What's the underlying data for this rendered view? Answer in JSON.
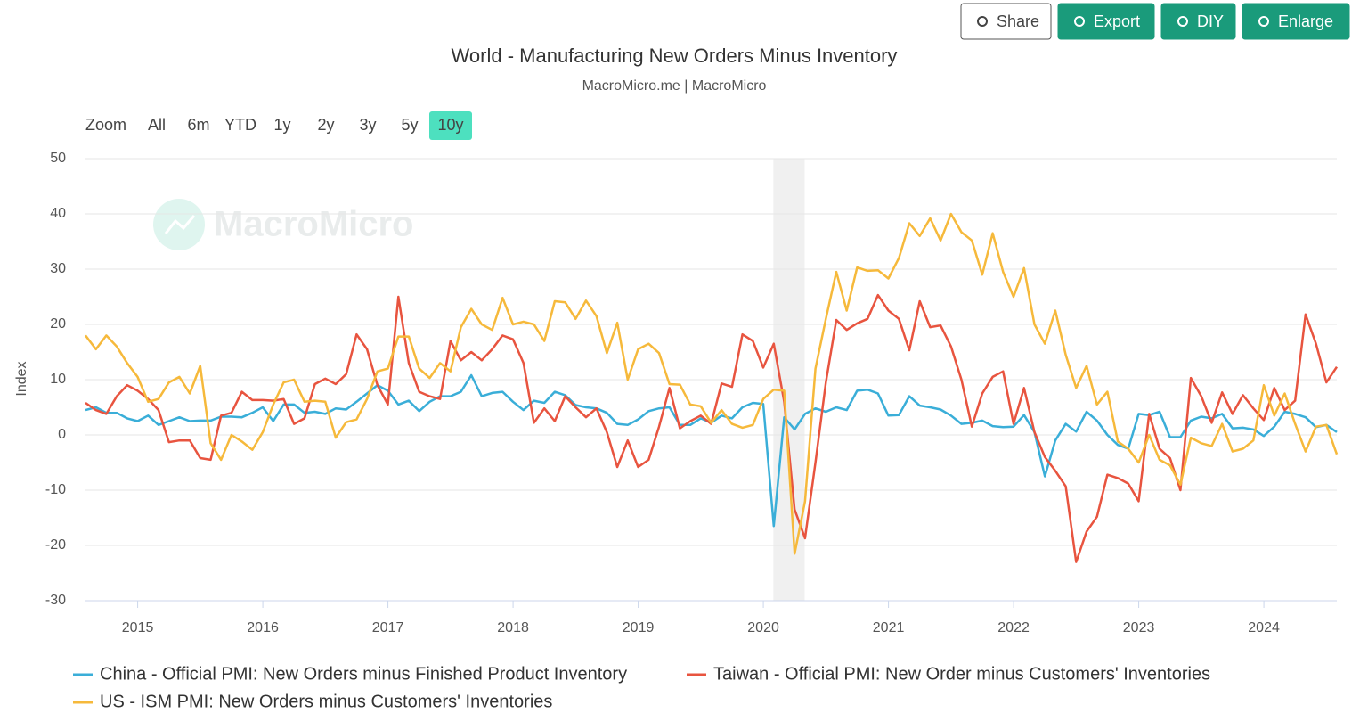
{
  "toolbar": {
    "buttons": [
      "Share",
      "Export",
      "DIY",
      "Enlarge"
    ]
  },
  "range_selector": {
    "label": "Zoom",
    "options": [
      "All",
      "6m",
      "YTD",
      "1y",
      "2y",
      "3y",
      "5y",
      "10y"
    ],
    "active_index": 7
  },
  "chart_data": {
    "type": "line",
    "title": "World - Manufacturing New Orders Minus Inventory",
    "subtitle": "MacroMicro.me | MacroMicro",
    "y_label": "Index",
    "watermark": "MacroMicro",
    "xlim": [
      2014.583,
      2024.583
    ],
    "xticks": [
      2015,
      2016,
      2017,
      2018,
      2019,
      2020,
      2021,
      2022,
      2023,
      2024
    ],
    "ylim": [
      -30,
      50
    ],
    "yticks": [
      -30,
      -20,
      -10,
      0,
      10,
      20,
      30,
      40,
      50
    ],
    "grid": true,
    "band": [
      2020.08,
      2020.33
    ],
    "series": [
      {
        "name": "China - Official PMI: New Orders minus Finished Product Inventory",
        "color": "#3aaed8",
        "values": [
          4.5,
          5,
          4,
          4,
          3,
          2.5,
          3.5,
          1.8,
          2.5,
          3.2,
          2.5,
          2.6,
          2.6,
          3.3,
          3.3,
          3.2,
          4,
          5,
          2.5,
          5.5,
          5.5,
          4,
          4.2,
          3.8,
          4.8,
          4.6,
          6,
          7.5,
          9,
          8,
          5.5,
          6.2,
          4.3,
          6,
          7,
          7,
          7.8,
          10.8,
          7,
          7.6,
          7.8,
          6,
          4.5,
          6.2,
          5.8,
          7.8,
          7.2,
          5.4,
          5,
          4.8,
          4,
          2,
          1.8,
          2.8,
          4.3,
          4.8,
          5,
          1.8,
          1.8,
          3,
          2.2,
          3.5,
          3,
          5,
          5.8,
          5.6,
          -16.5,
          3.2,
          1,
          3.8,
          4.8,
          4.2,
          5,
          4.5,
          8,
          8.2,
          7.5,
          3.5,
          3.6,
          7,
          5.3,
          5,
          4.6,
          3.5,
          2,
          2.2,
          2.6,
          1.6,
          1.4,
          1.5,
          3.6,
          0.5,
          -7.5,
          -1,
          2,
          0.6,
          4.2,
          2.6,
          0,
          -1.8,
          -2.5,
          3.8,
          3.6,
          4.2,
          -0.4,
          -0.4,
          2.6,
          3.3,
          3,
          3.8,
          1.2,
          1.3,
          1,
          -0.2,
          1.5,
          4.2,
          3.8,
          3.2,
          1.4,
          1.8,
          0.5
        ]
      },
      {
        "name": "Taiwan - Official PMI: New Order minus Customers' Inventories",
        "color": "#e8543f",
        "values": [
          5.8,
          4.5,
          3.8,
          7,
          9,
          8,
          6.5,
          4.5,
          -1.3,
          -1,
          -1,
          -4.2,
          -4.5,
          3.5,
          4,
          7.8,
          6.3,
          6.3,
          6.2,
          6.5,
          2,
          3,
          9.2,
          10.2,
          9.2,
          11,
          18.2,
          15.5,
          9,
          5.5,
          25,
          13,
          7.8,
          7,
          6.5,
          17,
          13.5,
          15,
          13.5,
          15.5,
          18,
          17.3,
          13,
          2.2,
          4.8,
          2.5,
          7,
          5,
          3.2,
          4.8,
          0.5,
          -5.8,
          -1,
          -5.8,
          -4.5,
          1.5,
          8.5,
          1.2,
          2.5,
          3.5,
          2,
          9.3,
          8.7,
          18.2,
          17,
          12.2,
          16.5,
          6,
          -13.5,
          -18.7,
          -5,
          9.5,
          20.8,
          19,
          20.2,
          21,
          25.3,
          22.5,
          21,
          15.3,
          24.2,
          19.5,
          19.8,
          16,
          10,
          1.5,
          7.5,
          10.5,
          11.5,
          2,
          8.5,
          0.5,
          -4,
          -6.5,
          -9.3,
          -23,
          -17.5,
          -14.8,
          -7.2,
          -7.8,
          -8.8,
          -12,
          3.8,
          -2.5,
          -4.2,
          -10,
          10.3,
          7,
          2.2,
          7.7,
          3.8,
          7.2,
          4.8,
          2.7,
          8.5,
          4.5,
          6.2,
          21.8,
          16.5,
          9.5,
          12.3
        ]
      },
      {
        "name": "US - ISM PMI: New Orders minus Customers' Inventories",
        "color": "#f6b93b",
        "values": [
          18,
          15.5,
          18,
          16,
          13,
          10.5,
          6,
          6.5,
          9.5,
          10.5,
          7.5,
          12.5,
          -1.5,
          -4.5,
          0,
          -1.2,
          -2.7,
          0.5,
          5.5,
          9.5,
          10,
          6,
          6.2,
          6,
          -0.5,
          2.3,
          2.8,
          6.5,
          11.5,
          12,
          17.8,
          17.8,
          12,
          10.3,
          13,
          11.5,
          19.5,
          22.8,
          20,
          19,
          24.8,
          20,
          20.5,
          20,
          17,
          24.2,
          24,
          21,
          24.3,
          21.5,
          14.8,
          20.3,
          10,
          15.5,
          16.5,
          14.8,
          9.2,
          9.1,
          5.5,
          5.2,
          2.2,
          4.5,
          2,
          1.3,
          1.8,
          6.5,
          8.2,
          8,
          -21.5,
          -12,
          12,
          21,
          29.5,
          22.5,
          30.3,
          29.7,
          29.8,
          28.3,
          32,
          38.3,
          36,
          39.2,
          35.2,
          40,
          36.7,
          35.2,
          29,
          36.5,
          29.5,
          25,
          30.2,
          20,
          16.5,
          22.5,
          14.5,
          8.5,
          12.5,
          5.5,
          7.8,
          -1.2,
          -2.5,
          -5,
          0,
          -4.5,
          -5.5,
          -9,
          -0.5,
          -1.5,
          -2,
          2,
          -3,
          -2.5,
          -1,
          9,
          3.5,
          7.5,
          2,
          -3,
          1.5,
          1.8,
          -3.5
        ]
      }
    ]
  }
}
